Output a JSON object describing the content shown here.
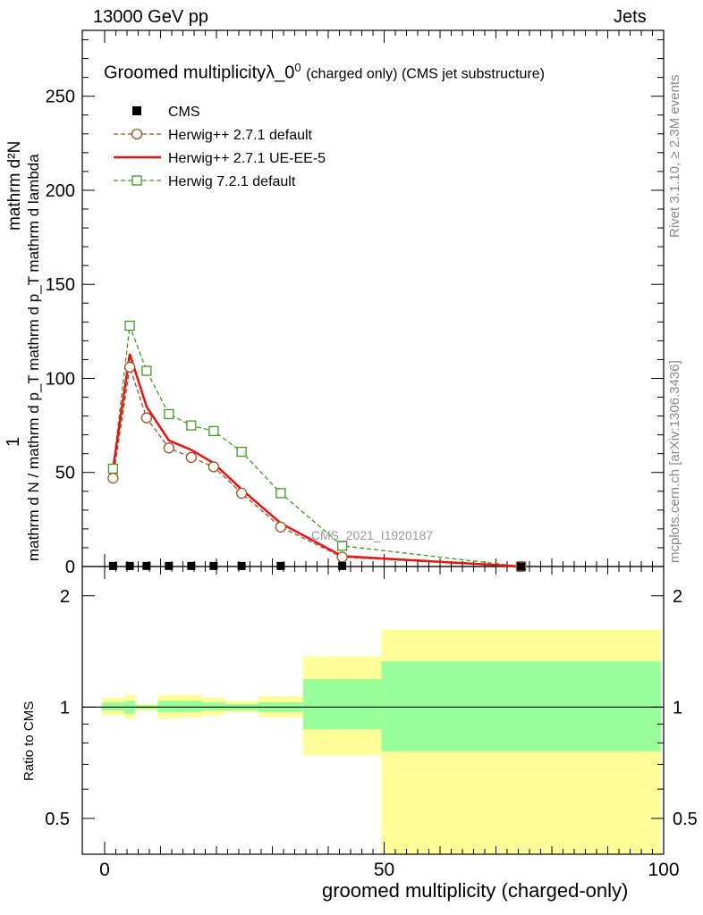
{
  "header": {
    "energy_label": "13000 GeV pp",
    "category_label": "Jets",
    "rivet_label": "Rivet 3.1.10, ≥ 2.3M events",
    "site_label": "mcplots.cern.ch [arXiv:1306.3436]"
  },
  "chart_data": [
    {
      "type": "line",
      "title_main": "Groomed multiplicity",
      "title_lambda": "λ_0",
      "title_sup": "0",
      "title_suffix": "(charged only) (CMS jet substructure)",
      "ylabel_top": "1",
      "ylabel_numerator": "mathrm d²N",
      "ylabel_denominator": "mathrm d N / mathrm d p_T mathrm d p_T mathrm d lambda",
      "xlim": [
        -4,
        100
      ],
      "ylim": [
        0,
        285
      ],
      "yticks": [
        0,
        50,
        100,
        150,
        200,
        250
      ],
      "analysis_label": "CMS_2021_I1920187",
      "series": [
        {
          "name": "CMS",
          "color": "#000000",
          "marker": "filled-square",
          "x": [
            1.5,
            4.5,
            7.5,
            11.5,
            15.5,
            19.5,
            24.5,
            31.5,
            42.5,
            74.5
          ],
          "y": [
            0.3,
            0.3,
            0.3,
            0.3,
            0.3,
            0.3,
            0.3,
            0.3,
            0.3,
            0.0
          ]
        },
        {
          "name": "Herwig++ 2.7.1 default",
          "color": "#a0501e",
          "marker": "open-circle",
          "line": "dashed",
          "x": [
            1.5,
            4.5,
            7.5,
            11.5,
            15.5,
            19.5,
            24.5,
            31.5,
            42.5,
            74.5
          ],
          "y": [
            47,
            106,
            79,
            63,
            58,
            53,
            39,
            21,
            5,
            0
          ]
        },
        {
          "name": "Herwig++ 2.7.1 UE-EE-5",
          "color": "#ee1111",
          "marker": "none",
          "line": "solid",
          "x": [
            1.5,
            4.5,
            7.5,
            11.5,
            15.5,
            19.5,
            24.5,
            31.5,
            42.5,
            74.5
          ],
          "y": [
            52,
            113,
            85,
            67,
            62,
            55,
            41,
            23,
            5.5,
            0
          ]
        },
        {
          "name": "Herwig 7.2.1 default",
          "color": "#3a9a1e",
          "marker": "open-square",
          "line": "dashed",
          "x": [
            1.5,
            4.5,
            7.5,
            11.5,
            15.5,
            19.5,
            24.5,
            31.5,
            42.5,
            74.5
          ],
          "y": [
            52,
            128,
            104,
            81,
            75,
            72,
            61,
            39,
            11,
            0
          ]
        }
      ]
    },
    {
      "type": "area",
      "ylabel": "Ratio to CMS",
      "xlabel": "groomed multiplicity (charged-only)",
      "xlim": [
        -4,
        100
      ],
      "ylim": [
        0.4,
        2.4
      ],
      "xticks": [
        0,
        50,
        100
      ],
      "yticks": [
        0.5,
        1,
        2
      ],
      "scale": "log",
      "reference": 1,
      "bins": [
        {
          "lo": -0.5,
          "hi": 3.5,
          "stat": [
            0.98,
            1.03
          ],
          "total": [
            0.95,
            1.06
          ]
        },
        {
          "lo": 3.5,
          "hi": 5.5,
          "stat": [
            0.96,
            1.04
          ],
          "total": [
            0.93,
            1.08
          ]
        },
        {
          "lo": 5.5,
          "hi": 9.5,
          "stat": [
            0.99,
            1.01
          ],
          "total": [
            0.98,
            1.02
          ]
        },
        {
          "lo": 9.5,
          "hi": 13.5,
          "stat": [
            0.97,
            1.04
          ],
          "total": [
            0.93,
            1.08
          ]
        },
        {
          "lo": 13.5,
          "hi": 17.5,
          "stat": [
            0.97,
            1.04
          ],
          "total": [
            0.94,
            1.08
          ]
        },
        {
          "lo": 17.5,
          "hi": 21.5,
          "stat": [
            0.98,
            1.03
          ],
          "total": [
            0.95,
            1.06
          ]
        },
        {
          "lo": 21.5,
          "hi": 27.5,
          "stat": [
            0.98,
            1.02
          ],
          "total": [
            0.97,
            1.04
          ]
        },
        {
          "lo": 27.5,
          "hi": 35.5,
          "stat": [
            0.97,
            1.03
          ],
          "total": [
            0.94,
            1.07
          ]
        },
        {
          "lo": 35.5,
          "hi": 49.5,
          "stat": [
            0.87,
            1.19
          ],
          "total": [
            0.74,
            1.37
          ]
        },
        {
          "lo": 49.5,
          "hi": 99.5,
          "stat": [
            0.76,
            1.33
          ],
          "total": [
            0.4,
            1.62
          ]
        }
      ]
    }
  ]
}
